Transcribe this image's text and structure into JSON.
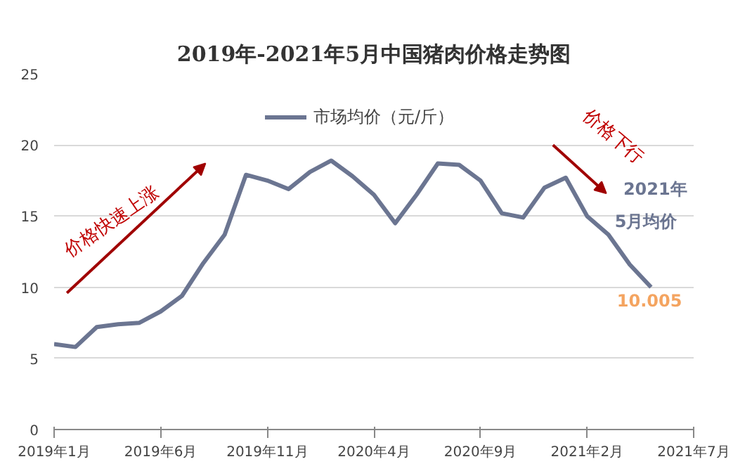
{
  "chart_data": {
    "type": "line",
    "title": "2019年-2021年5月中国猪肉价格走势图",
    "x": [
      "2019-01",
      "2019-02",
      "2019-03",
      "2019-04",
      "2019-05",
      "2019-06",
      "2019-07",
      "2019-08",
      "2019-09",
      "2019-10",
      "2019-11",
      "2019-12",
      "2020-01",
      "2020-02",
      "2020-03",
      "2020-04",
      "2020-05",
      "2020-06",
      "2020-07",
      "2020-08",
      "2020-09",
      "2020-10",
      "2020-11",
      "2020-12",
      "2021-01",
      "2021-02",
      "2021-03",
      "2021-04",
      "2021-05"
    ],
    "series": [
      {
        "name": "市场均价（元/斤）",
        "color": "#6b7591",
        "values": [
          6.0,
          5.8,
          7.2,
          7.4,
          7.5,
          8.3,
          9.4,
          11.7,
          13.7,
          17.9,
          17.5,
          16.9,
          18.1,
          18.9,
          17.8,
          16.5,
          14.5,
          16.5,
          18.7,
          18.6,
          17.5,
          15.2,
          14.9,
          17.0,
          17.7,
          15.0,
          13.7,
          11.6,
          10.005
        ]
      }
    ],
    "xlim": [
      "2019-01",
      "2021-07"
    ],
    "xticks": [
      {
        "value": "2019-01",
        "label": "2019年1月"
      },
      {
        "value": "2019-06",
        "label": "2019年6月"
      },
      {
        "value": "2019-11",
        "label": "2019年11月"
      },
      {
        "value": "2020-04",
        "label": "2020年4月"
      },
      {
        "value": "2020-09",
        "label": "2020年9月"
      },
      {
        "value": "2021-02",
        "label": "2021年2月"
      },
      {
        "value": "2021-07",
        "label": "2021年7月"
      }
    ],
    "ylim": [
      0,
      25
    ],
    "yticks": [
      0,
      5,
      10,
      15,
      20,
      25
    ],
    "grid": "y",
    "legend": "top",
    "marker": "none",
    "line_style": "solid",
    "annotations": [
      "价格快速上涨",
      "价格下行",
      "2021年",
      "5月均价",
      {
        "text": "10.005",
        "x": "2021-05",
        "y": 10.005
      }
    ]
  }
}
